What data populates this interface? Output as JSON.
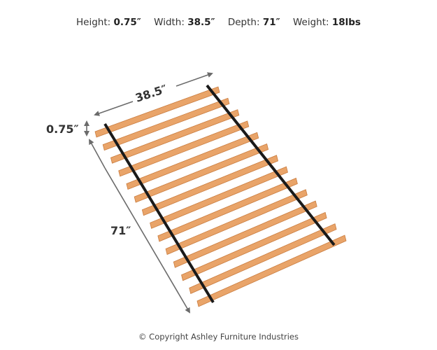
{
  "specs": [
    {
      "label": "Height:",
      "value": "0.75″"
    },
    {
      "label": "Width:",
      "value": "38.5″"
    },
    {
      "label": "Depth:",
      "value": "71″"
    },
    {
      "label": "Weight:",
      "value": "18lbs"
    }
  ],
  "diagram": {
    "width_label": "38.5″",
    "height_label": "0.75″",
    "depth_label": "71″",
    "slat_count": 14,
    "colors": {
      "slat": "#e9a469",
      "slat_edge": "#c97c3f",
      "strap": "#1a1a1a",
      "arrow": "#6b6b6b"
    }
  },
  "copyright": "© Copyright Ashley Furniture Industries"
}
